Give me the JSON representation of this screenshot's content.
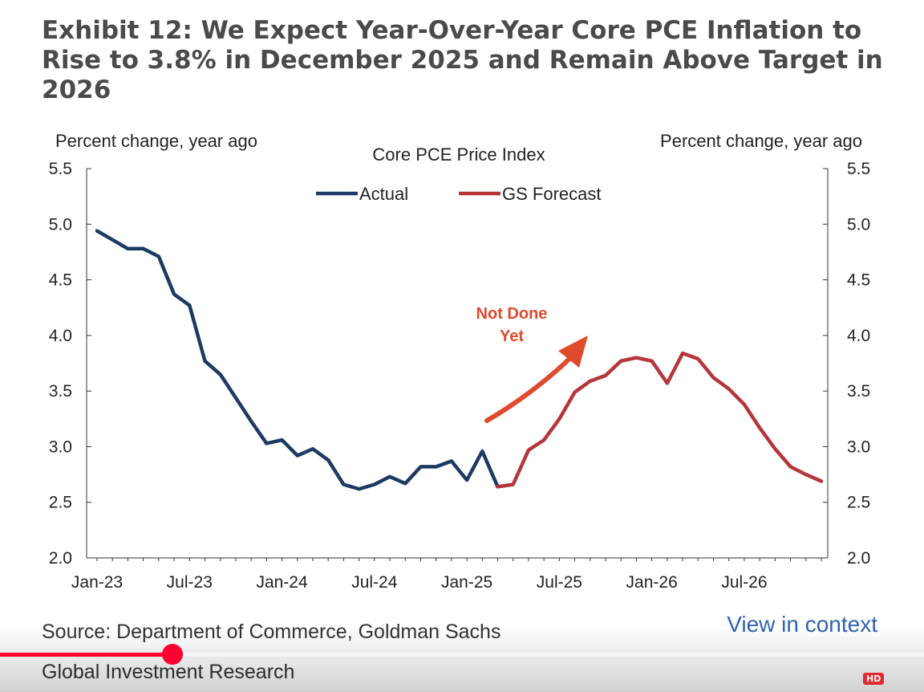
{
  "title": "Exhibit 12: We Expect Year-Over-Year Core PCE Inflation to Rise to 3.8% in December 2025 and Remain Above Target in 2026",
  "source": "Source: Department of Commerce, Goldman Sachs Global Investment Research",
  "view_link": "View in context",
  "video": {
    "progress": 0.187,
    "hd_label": "HD"
  },
  "chart_data": {
    "type": "line",
    "title": "Core PCE Price Index",
    "ylabel_left": "Percent change, year ago",
    "ylabel_right": "Percent change, year ago",
    "ylim": [
      2.0,
      5.5
    ],
    "yticks": [
      2.0,
      2.5,
      3.0,
      3.5,
      4.0,
      4.5,
      5.0,
      5.5
    ],
    "ytick_labels": [
      "2.0",
      "2.5",
      "3.0",
      "3.5",
      "4.0",
      "4.5",
      "5.0",
      "5.5"
    ],
    "x_tick_labels": [
      "Jan-23",
      "Jul-23",
      "Jan-24",
      "Jul-24",
      "Jan-25",
      "Jul-25",
      "Jan-26",
      "Jul-26"
    ],
    "x_tick_months": [
      0,
      6,
      12,
      18,
      24,
      30,
      36,
      42
    ],
    "xlim_months": [
      0,
      47
    ],
    "grid": false,
    "legend_position": "top-center",
    "annotation": {
      "text_line1": "Not Done",
      "text_line2": "Yet",
      "color": "#e04a2c"
    },
    "series": [
      {
        "name": "Actual",
        "color": "#1d3a63",
        "months": [
          0,
          1,
          2,
          3,
          4,
          5,
          6,
          7,
          8,
          9,
          10,
          11,
          12,
          13,
          14,
          15,
          16,
          17,
          18,
          19,
          20,
          21,
          22,
          23,
          24,
          25,
          26
        ],
        "values": [
          4.94,
          4.86,
          4.78,
          4.78,
          4.71,
          4.37,
          4.27,
          3.77,
          3.65,
          3.44,
          3.23,
          3.03,
          3.06,
          2.92,
          2.98,
          2.88,
          2.66,
          2.62,
          2.66,
          2.73,
          2.67,
          2.82,
          2.82,
          2.87,
          2.7,
          2.96,
          2.64
        ]
      },
      {
        "name": "GS Forecast",
        "color": "#b5353b",
        "months": [
          26,
          27,
          28,
          29,
          30,
          31,
          32,
          33,
          34,
          35,
          36,
          37,
          38,
          39,
          40,
          41,
          42,
          43,
          44,
          45,
          46,
          47
        ],
        "values": [
          2.64,
          2.66,
          2.97,
          3.06,
          3.25,
          3.49,
          3.59,
          3.64,
          3.77,
          3.8,
          3.77,
          3.57,
          3.84,
          3.79,
          3.62,
          3.52,
          3.38,
          3.17,
          2.98,
          2.82,
          2.75,
          2.69
        ]
      }
    ]
  }
}
